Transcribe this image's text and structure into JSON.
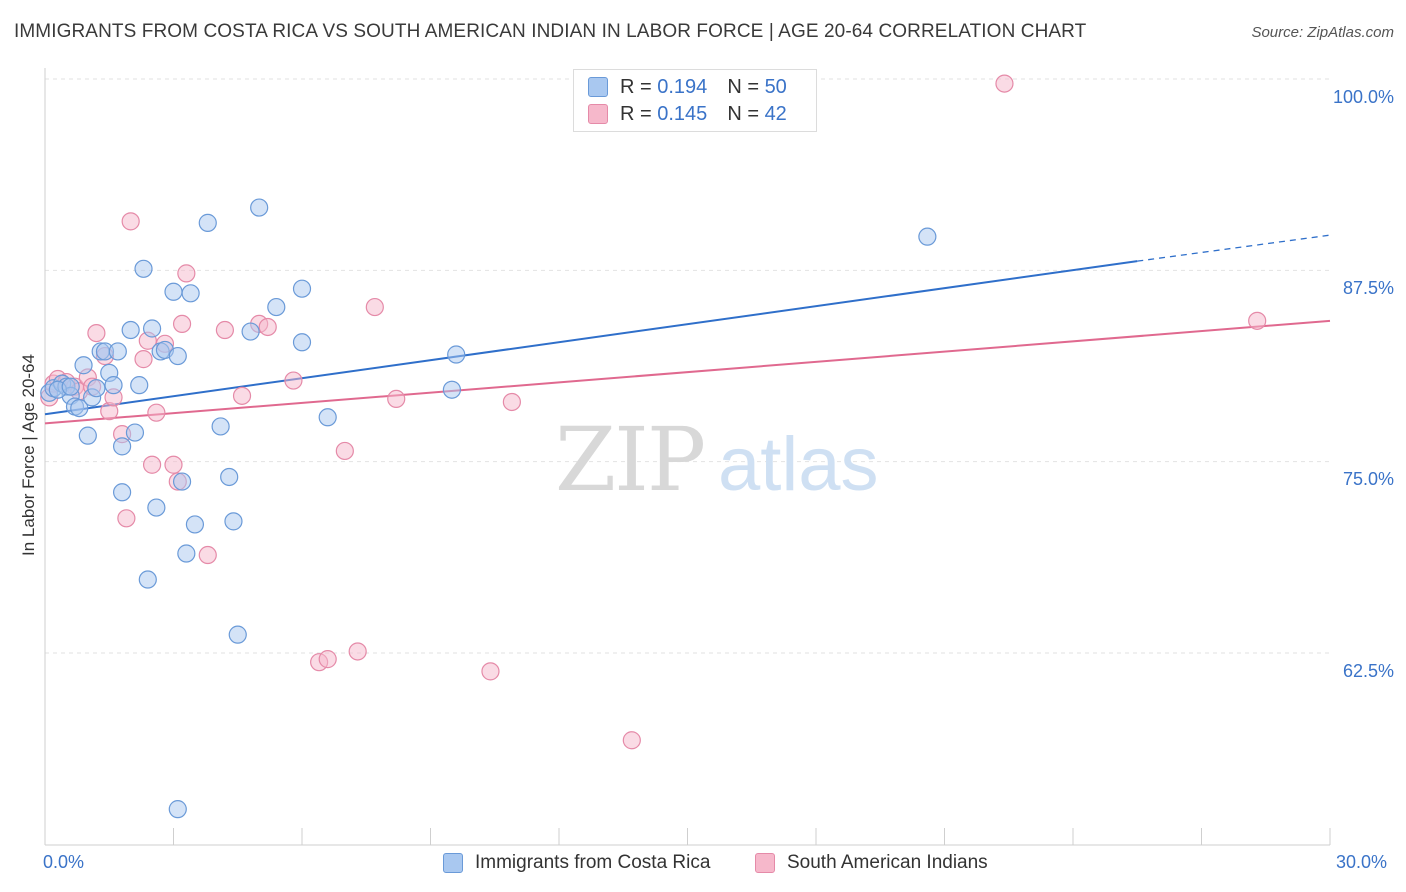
{
  "header": {
    "title": "IMMIGRANTS FROM COSTA RICA VS SOUTH AMERICAN INDIAN IN LABOR FORCE | AGE 20-64 CORRELATION CHART",
    "source": "Source: ZipAtlas.com"
  },
  "watermark": {
    "zip": "ZIP",
    "atlas": "atlas"
  },
  "legend": {
    "rows": [
      {
        "r_label": "R =",
        "r_value": "0.194",
        "n_label": "N =",
        "n_value": "50"
      },
      {
        "r_label": "R =",
        "r_value": "0.145",
        "n_label": "N =",
        "n_value": "42"
      }
    ]
  },
  "axes": {
    "ylabel": "In Labor Force | Age 20-64",
    "x_min_label": "0.0%",
    "x_max_label": "30.0%",
    "y_tick_labels": [
      "100.0%",
      "87.5%",
      "75.0%",
      "62.5%"
    ]
  },
  "colors": {
    "blue_fill": "#a9c8f0",
    "blue_stroke": "#6a9ad8",
    "blue_line": "#2f6fca",
    "pink_fill": "#f6b8cb",
    "pink_stroke": "#e58aa8",
    "pink_line": "#e0698f",
    "axis_text": "#3a73c8"
  },
  "chart_data": {
    "type": "scatter",
    "title": "IMMIGRANTS FROM COSTA RICA VS SOUTH AMERICAN INDIAN IN LABOR FORCE | AGE 20-64 CORRELATION CHART",
    "xlabel": "",
    "ylabel": "In Labor Force | Age 20-64",
    "xlim": [
      0,
      30
    ],
    "ylim": [
      50,
      102
    ],
    "y_ticks": [
      62.5,
      75.0,
      87.5,
      100.0
    ],
    "grid": true,
    "legend_position": "top-center",
    "series": [
      {
        "name": "Immigrants from Costa Rica",
        "R": 0.194,
        "N": 50,
        "trend": {
          "x0": 0,
          "y0": 78.1,
          "x1": 25.5,
          "y1": 88.1,
          "dashed_to_x": 30,
          "dashed_to_y": 89.8
        },
        "points": [
          [
            0.1,
            79.5
          ],
          [
            0.2,
            79.8
          ],
          [
            0.4,
            80.1
          ],
          [
            0.5,
            79.9
          ],
          [
            0.6,
            79.3
          ],
          [
            0.7,
            78.6
          ],
          [
            0.8,
            78.5
          ],
          [
            0.9,
            81.3
          ],
          [
            1.0,
            76.7
          ],
          [
            1.1,
            79.2
          ],
          [
            1.2,
            79.8
          ],
          [
            1.3,
            82.2
          ],
          [
            1.4,
            82.2
          ],
          [
            1.5,
            80.8
          ],
          [
            1.6,
            80.0
          ],
          [
            1.7,
            82.2
          ],
          [
            1.8,
            76.0
          ],
          [
            1.8,
            73.0
          ],
          [
            2.0,
            83.6
          ],
          [
            2.1,
            76.9
          ],
          [
            2.2,
            80.0
          ],
          [
            2.3,
            87.6
          ],
          [
            2.4,
            67.3
          ],
          [
            2.5,
            83.7
          ],
          [
            2.6,
            72.0
          ],
          [
            2.7,
            82.2
          ],
          [
            2.8,
            82.3
          ],
          [
            3.0,
            86.1
          ],
          [
            3.1,
            81.9
          ],
          [
            3.2,
            73.7
          ],
          [
            3.3,
            69.0
          ],
          [
            3.4,
            86.0
          ],
          [
            3.5,
            70.9
          ],
          [
            3.8,
            90.6
          ],
          [
            4.1,
            77.3
          ],
          [
            4.3,
            74.0
          ],
          [
            4.4,
            71.1
          ],
          [
            4.5,
            63.7
          ],
          [
            4.8,
            83.5
          ],
          [
            5.0,
            91.6
          ],
          [
            5.4,
            85.1
          ],
          [
            6.0,
            86.3
          ],
          [
            6.0,
            82.8
          ],
          [
            6.6,
            77.9
          ],
          [
            9.5,
            79.7
          ],
          [
            9.6,
            82.0
          ],
          [
            3.1,
            52.3
          ],
          [
            20.6,
            89.7
          ],
          [
            0.3,
            79.7
          ],
          [
            0.6,
            79.9
          ]
        ]
      },
      {
        "name": "South American Indians",
        "R": 0.145,
        "N": 42,
        "trend": {
          "x0": 0,
          "y0": 77.5,
          "x1": 30,
          "y1": 84.2
        },
        "points": [
          [
            0.1,
            79.2
          ],
          [
            0.2,
            80.1
          ],
          [
            0.3,
            80.4
          ],
          [
            0.5,
            80.2
          ],
          [
            0.7,
            79.9
          ],
          [
            0.8,
            79.6
          ],
          [
            1.0,
            80.5
          ],
          [
            1.1,
            79.9
          ],
          [
            1.2,
            83.4
          ],
          [
            1.4,
            81.9
          ],
          [
            1.5,
            78.3
          ],
          [
            1.6,
            79.2
          ],
          [
            1.8,
            76.8
          ],
          [
            1.9,
            71.3
          ],
          [
            2.0,
            90.7
          ],
          [
            2.3,
            81.7
          ],
          [
            2.4,
            82.9
          ],
          [
            2.5,
            74.8
          ],
          [
            2.6,
            78.2
          ],
          [
            2.8,
            82.7
          ],
          [
            3.0,
            74.8
          ],
          [
            3.1,
            73.7
          ],
          [
            3.2,
            84.0
          ],
          [
            3.3,
            87.3
          ],
          [
            3.8,
            68.9
          ],
          [
            4.2,
            83.6
          ],
          [
            4.6,
            79.3
          ],
          [
            5.0,
            84.0
          ],
          [
            5.2,
            83.8
          ],
          [
            5.8,
            80.3
          ],
          [
            6.4,
            61.9
          ],
          [
            6.6,
            62.1
          ],
          [
            7.0,
            75.7
          ],
          [
            7.3,
            62.6
          ],
          [
            7.7,
            85.1
          ],
          [
            8.2,
            79.1
          ],
          [
            10.4,
            61.3
          ],
          [
            10.9,
            78.9
          ],
          [
            13.7,
            56.8
          ],
          [
            17.4,
            100.0
          ],
          [
            22.4,
            99.7
          ],
          [
            28.3,
            84.2
          ]
        ]
      }
    ]
  },
  "bottom_legend": {
    "items": [
      {
        "label": "Immigrants from Costa Rica"
      },
      {
        "label": "South American Indians"
      }
    ]
  }
}
